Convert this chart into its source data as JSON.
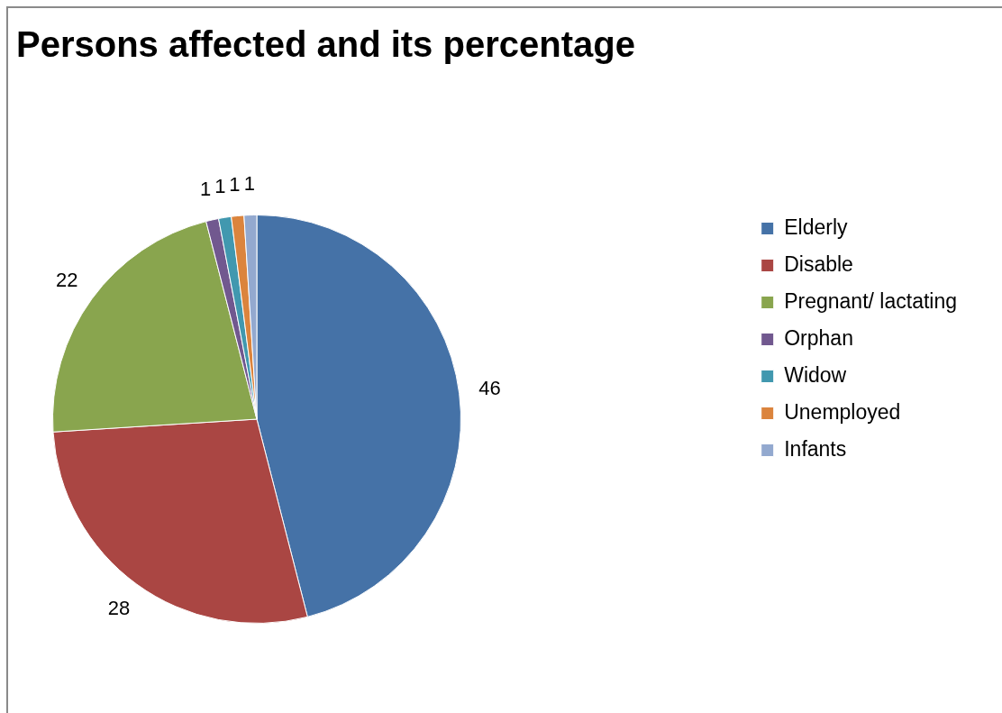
{
  "chart_data": {
    "type": "pie",
    "title": "Persons affected and its percentage",
    "categories": [
      "Elderly",
      "Disable",
      "Pregnant/ lactating",
      "Orphan",
      "Widow",
      "Unemployed",
      "Infants"
    ],
    "values": [
      46,
      28,
      22,
      1,
      1,
      1,
      1
    ],
    "colors": [
      "#4572a7",
      "#aa4643",
      "#89a54e",
      "#71588f",
      "#4198af",
      "#db843d",
      "#93a9cf"
    ],
    "data_labels": true,
    "legend": "right"
  }
}
